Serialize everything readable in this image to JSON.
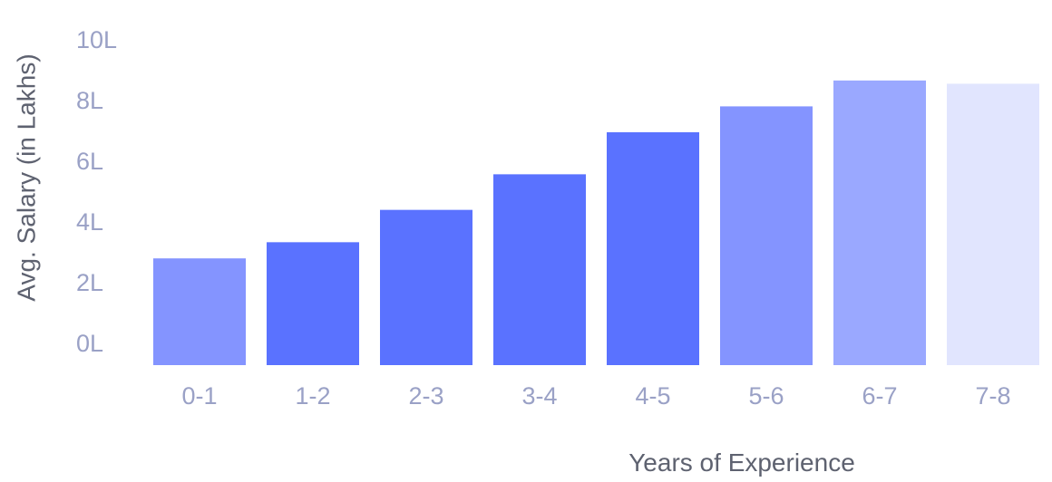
{
  "chart_data": {
    "type": "bar",
    "title": "",
    "xlabel": "Years of Experience",
    "ylabel": "Avg. Salary (in Lakhs)",
    "categories": [
      "0-1",
      "1-2",
      "2-3",
      "3-4",
      "4-5",
      "5-6",
      "6-7",
      "7-8"
    ],
    "values": [
      3.3,
      3.8,
      4.8,
      5.9,
      7.2,
      8.0,
      8.8,
      8.7
    ],
    "y_ticks": [
      "0L",
      "2L",
      "4L",
      "6L",
      "8L",
      "10L"
    ],
    "y_tick_values": [
      0,
      2,
      4,
      6,
      8,
      10
    ],
    "ylim": [
      0,
      10
    ],
    "grid": false,
    "legend": "none",
    "bar_colors": [
      "#8494ff",
      "#5a72ff",
      "#5a72ff",
      "#5a72ff",
      "#5a72ff",
      "#8494ff",
      "#9aa8ff",
      "#e1e5fe"
    ],
    "label_color": "#9aa1c6",
    "axis_title_color": "#5e6270"
  }
}
